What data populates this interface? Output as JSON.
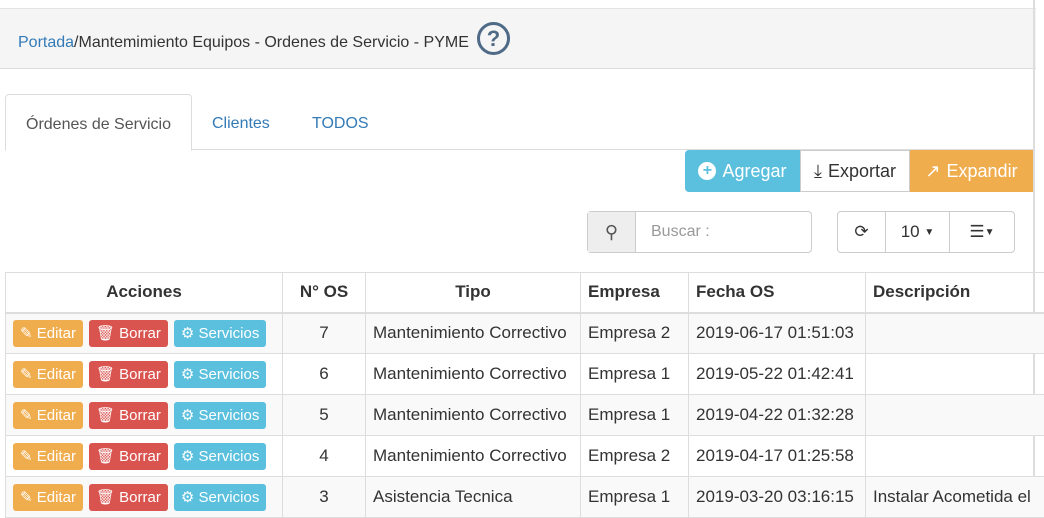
{
  "breadcrumb": {
    "home": "Portada",
    "separator": "/",
    "current": "Mantemimiento Equipos - Ordenes de Servicio - PYME",
    "help_icon": "question-circle-icon"
  },
  "tabs": [
    {
      "label": "Órdenes de Servicio",
      "active": true
    },
    {
      "label": "Clientes"
    },
    {
      "label": "TODOS"
    }
  ],
  "toolbar": {
    "add": "Agregar",
    "export": "Exportar",
    "expand": "Expandir"
  },
  "search": {
    "placeholder": "Buscar :"
  },
  "page_size": "10",
  "colors": {
    "info": "#5bc0de",
    "warning": "#f0ad4e",
    "danger": "#d9534f",
    "link": "#337ab7"
  },
  "table": {
    "headers": [
      "Acciones",
      "N° OS",
      "Tipo",
      "Empresa",
      "Fecha OS",
      "Descripción"
    ],
    "actions": {
      "edit": "Editar",
      "delete": "Borrar",
      "services": "Servicios"
    },
    "rows": [
      {
        "os": "7",
        "tipo": "Mantenimiento Correctivo",
        "empresa": "Empresa 2",
        "fecha": "2019-06-17 01:51:03",
        "desc": ""
      },
      {
        "os": "6",
        "tipo": "Mantenimiento Correctivo",
        "empresa": "Empresa 1",
        "fecha": "2019-05-22 01:42:41",
        "desc": ""
      },
      {
        "os": "5",
        "tipo": "Mantenimiento Correctivo",
        "empresa": "Empresa 1",
        "fecha": "2019-04-22 01:32:28",
        "desc": ""
      },
      {
        "os": "4",
        "tipo": "Mantenimiento Correctivo",
        "empresa": "Empresa 2",
        "fecha": "2019-04-17 01:25:58",
        "desc": ""
      },
      {
        "os": "3",
        "tipo": "Asistencia Tecnica",
        "empresa": "Empresa 1",
        "fecha": "2019-03-20 03:16:15",
        "desc": "Instalar Acometida el"
      }
    ]
  }
}
